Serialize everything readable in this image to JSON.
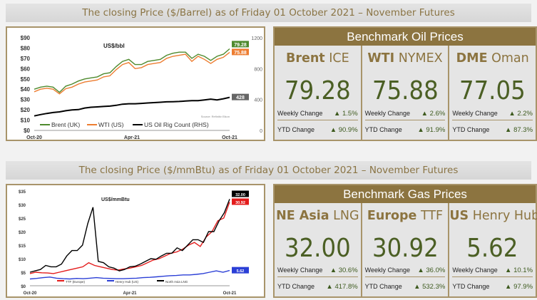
{
  "oil": {
    "title": "The closing Price ($/Barrel) as of Friday 01 October 2021 – November Futures",
    "panel_title": "Benchmark Oil Prices",
    "cards": [
      {
        "bold": "Brent",
        "name": " ICE",
        "price": "79.28",
        "weekly_label": "Weekly Change",
        "weekly": "▲ 1.5%",
        "ytd_label": "YTD Change",
        "ytd": "▲ 90.9%"
      },
      {
        "bold": "WTI",
        "name": " NYMEX",
        "price": "75.88",
        "weekly_label": "Weekly Change",
        "weekly": "▲ 2.6%",
        "ytd_label": "YTD Change",
        "ytd": "▲ 91.9%"
      },
      {
        "bold": "DME",
        "name": " Oman",
        "price": "77.05",
        "weekly_label": "Weekly Change",
        "weekly": "▲ 2.2%",
        "ytd_label": "YTD Change",
        "ytd": "▲ 87.3%"
      }
    ]
  },
  "gas": {
    "title": "The closing Price ($/mmBtu) as of Friday 01 October 2021 – November Futures",
    "panel_title": "Benchmark Gas Prices",
    "cards": [
      {
        "bold": "NE Asia",
        "name": " LNG",
        "price": "32.00",
        "weekly_label": "Weekly Change",
        "weekly": "▲ 30.6%",
        "ytd_label": "YTD Change",
        "ytd": "▲ 417.8%"
      },
      {
        "bold": "Europe",
        "name": " TTF",
        "price": "30.92",
        "weekly_label": "Weekly Change",
        "weekly": "▲ 36.0%",
        "ytd_label": "YTD Change",
        "ytd": "▲ 532.3%"
      },
      {
        "bold": "US",
        "name": " Henry Hub",
        "price": "5.62",
        "weekly_label": "Weekly Change",
        "weekly": "▲ 10.1%",
        "ytd_label": "YTD Change",
        "ytd": "▲ 97.9%"
      }
    ]
  },
  "chart_data": [
    {
      "type": "line",
      "title": "US$/bbl",
      "ylim": [
        0,
        90
      ],
      "y2lim": [
        0,
        1200
      ],
      "yticks": [
        "$0",
        "$10",
        "$20",
        "$30",
        "$40",
        "$50",
        "$60",
        "$70",
        "$80",
        "$90"
      ],
      "y2ticks": [
        "0",
        "400",
        "800",
        "1200"
      ],
      "xticks": [
        "Oct-20",
        "Apr-21",
        "Oct-21"
      ],
      "source": "Source: Refinitiv Eikon",
      "series": [
        {
          "name": "Brent (UK)",
          "color": "#4e8a2e",
          "axis": "left",
          "label": "79.28",
          "values": [
            40,
            42,
            43,
            42,
            37,
            43,
            45,
            48,
            50,
            51,
            52,
            55,
            56,
            62,
            67,
            69,
            64,
            64,
            67,
            68,
            69,
            73,
            75,
            76,
            76,
            70,
            74,
            72,
            68,
            72,
            74,
            79.28
          ]
        },
        {
          "name": "WTI (US)",
          "color": "#ed7d31",
          "axis": "left",
          "label": "75.88",
          "values": [
            37.5,
            40,
            41,
            40,
            35.5,
            40.5,
            42,
            45,
            47,
            48,
            49,
            52,
            53,
            59,
            64,
            66,
            60,
            61,
            64,
            65,
            66,
            70,
            72,
            73,
            74,
            67,
            72,
            69,
            65,
            69,
            71,
            75.88
          ]
        },
        {
          "name": "US Oil Rig Count (RHS)",
          "color": "#000000",
          "axis": "right",
          "label": "428",
          "values": [
            187,
            205,
            220,
            232,
            240,
            255,
            265,
            270,
            290,
            300,
            305,
            310,
            315,
            325,
            340,
            345,
            345,
            350,
            355,
            360,
            365,
            370,
            372,
            375,
            380,
            385,
            385,
            395,
            405,
            395,
            410,
            428
          ]
        }
      ]
    },
    {
      "type": "line",
      "title": "US$/mmBtu",
      "ylim": [
        0,
        35
      ],
      "yticks": [
        "$0",
        "$5",
        "$10",
        "$15",
        "$20",
        "$25",
        "$30",
        "$35"
      ],
      "xticks": [
        "Oct-20",
        "Apr-21",
        "Oct-21"
      ],
      "series": [
        {
          "name": "TTF (Europe)",
          "color": "#e31b1b",
          "label": "30.92",
          "values": [
            4.5,
            5,
            4.8,
            4.7,
            4.5,
            5,
            5.5,
            6,
            6.5,
            7,
            8.5,
            7.5,
            7,
            6.5,
            6,
            5.8,
            6.2,
            6.5,
            7,
            7.5,
            8.5,
            9.5,
            10,
            11,
            12,
            12.5,
            13.5,
            15,
            16,
            14.5,
            18,
            20,
            24,
            25,
            30.92
          ]
        },
        {
          "name": "Henry Hub (US)",
          "color": "#2b3fd6",
          "label": "5.62",
          "values": [
            2.5,
            2.7,
            3,
            3.2,
            2.8,
            2.6,
            2.5,
            2.7,
            2.6,
            2.8,
            3,
            2.8,
            2.7,
            2.6,
            2.6,
            2.7,
            2.8,
            3,
            3.1,
            3.3,
            3.5,
            3.7,
            3.8,
            4,
            4,
            4.2,
            4.5,
            5,
            5.5,
            5,
            5.62
          ]
        },
        {
          "name": "North Asia LNG",
          "color": "#000000",
          "label": "32.00",
          "values": [
            5,
            5.5,
            6,
            7.5,
            7,
            7,
            8,
            11,
            13,
            13,
            15,
            23,
            29,
            9,
            8.5,
            7,
            6.5,
            5.5,
            6,
            7,
            7.2,
            8,
            9,
            10,
            9.8,
            11,
            12,
            12,
            14,
            13,
            15,
            17,
            17,
            16,
            20,
            20,
            24,
            27,
            32
          ]
        }
      ]
    }
  ]
}
